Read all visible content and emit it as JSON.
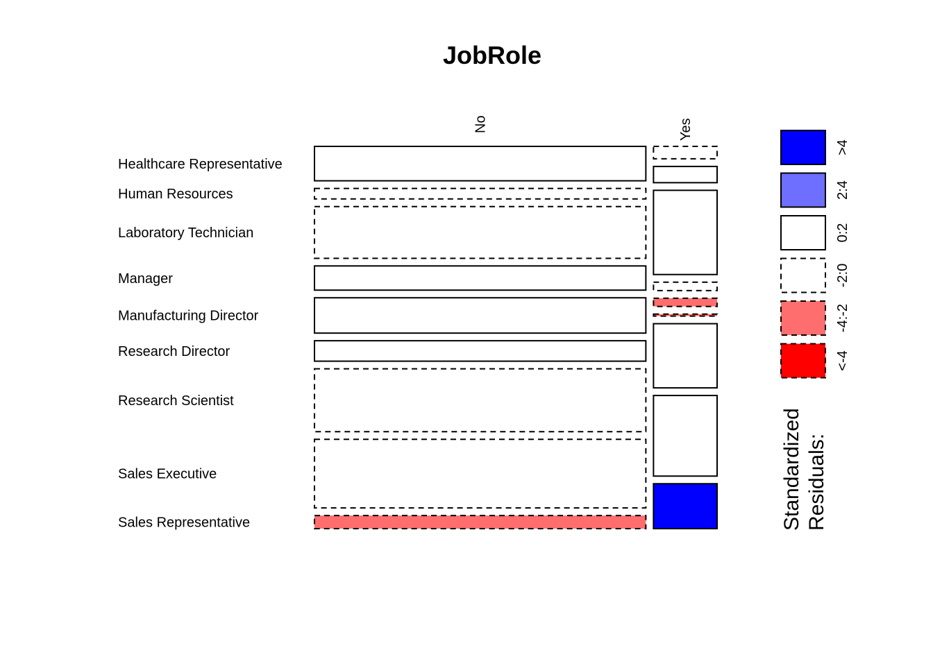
{
  "chart_data": {
    "type": "mosaic",
    "title": "JobRole",
    "row_variable": "JobRole",
    "rows": [
      "Healthcare Representative",
      "Human Resources",
      "Laboratory Technician",
      "Manager",
      "Manufacturing Director",
      "Research Director",
      "Research Scientist",
      "Sales Executive",
      "Sales Representative"
    ],
    "columns": [
      "No",
      "Yes"
    ],
    "cells": [
      {
        "row": "Healthcare Representative",
        "column": "No",
        "share": 0.0894,
        "residual_bin": "0:2"
      },
      {
        "row": "Healthcare Representative",
        "column": "Yes",
        "share": 0.0062,
        "residual_bin": "-2:0"
      },
      {
        "row": "Human Resources",
        "column": "No",
        "share": 0.0272,
        "residual_bin": "-2:0"
      },
      {
        "row": "Human Resources",
        "column": "Yes",
        "share": 0.0081,
        "residual_bin": "0:2"
      },
      {
        "row": "Laboratory Technician",
        "column": "No",
        "share": 0.1345,
        "residual_bin": "-2:0"
      },
      {
        "row": "Laboratory Technician",
        "column": "Yes",
        "share": 0.042,
        "residual_bin": "0:2"
      },
      {
        "row": "Manager",
        "column": "No",
        "share": 0.0629,
        "residual_bin": "0:2"
      },
      {
        "row": "Manager",
        "column": "Yes",
        "share": 0.0042,
        "residual_bin": "-2:0"
      },
      {
        "row": "Manufacturing Director",
        "column": "No",
        "share": 0.0918,
        "residual_bin": "0:2"
      },
      {
        "row": "Manufacturing Director",
        "column": "Yes",
        "share": 0.0041,
        "residual_bin": "-4:-2"
      },
      {
        "row": "Research Director",
        "column": "No",
        "share": 0.0531,
        "residual_bin": "0:2"
      },
      {
        "row": "Research Director",
        "column": "Yes",
        "share": 0.001,
        "residual_bin": "-4:-2"
      },
      {
        "row": "Research Scientist",
        "column": "No",
        "share": 0.1633,
        "residual_bin": "-2:0"
      },
      {
        "row": "Research Scientist",
        "column": "Yes",
        "share": 0.032,
        "residual_bin": "0:2"
      },
      {
        "row": "Sales Executive",
        "column": "No",
        "share": 0.1782,
        "residual_bin": "-2:0"
      },
      {
        "row": "Sales Executive",
        "column": "Yes",
        "share": 0.0402,
        "residual_bin": "0:2"
      },
      {
        "row": "Sales Representative",
        "column": "No",
        "share": 0.0341,
        "residual_bin": "-4:-2"
      },
      {
        "row": "Sales Representative",
        "column": "Yes",
        "share": 0.0224,
        "residual_bin": ">4"
      }
    ],
    "legend": {
      "title_lines": [
        "Standardized",
        "Residuals:"
      ],
      "bins": [
        {
          "label": ">4",
          "color": "#0000FF",
          "border": "solid"
        },
        {
          "label": "2:4",
          "color": "#6E6EFF",
          "border": "solid"
        },
        {
          "label": "0:2",
          "color": "#FFFFFF",
          "border": "solid"
        },
        {
          "label": "-2:0",
          "color": "#FFFFFF",
          "border": "dashed"
        },
        {
          "label": "-4:-2",
          "color": "#FF6E6E",
          "border": "dashed"
        },
        {
          "label": "<-4",
          "color": "#FF0000",
          "border": "dashed"
        }
      ],
      "placement": "right"
    }
  }
}
